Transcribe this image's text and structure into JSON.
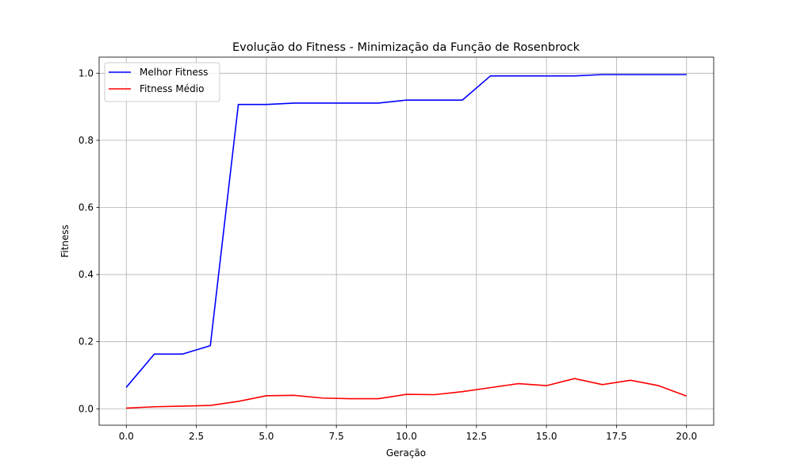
{
  "chart_data": {
    "type": "line",
    "title": "Evolução do Fitness - Minimização da Função de Rosenbrock",
    "xlabel": "Geração",
    "ylabel": "Fitness",
    "x": [
      0,
      1,
      2,
      3,
      4,
      5,
      6,
      7,
      8,
      9,
      10,
      11,
      12,
      13,
      14,
      15,
      16,
      17,
      18,
      19,
      20
    ],
    "xlim": [
      -0.97,
      20.97
    ],
    "ylim": [
      -0.049,
      1.048
    ],
    "xticks": [
      0.0,
      2.5,
      5.0,
      7.5,
      10.0,
      12.5,
      15.0,
      17.5,
      20.0
    ],
    "xtick_labels": [
      "0.0",
      "2.5",
      "5.0",
      "7.5",
      "10.0",
      "12.5",
      "15.0",
      "17.5",
      "20.0"
    ],
    "yticks": [
      0.0,
      0.2,
      0.4,
      0.6,
      0.8,
      1.0
    ],
    "ytick_labels": [
      "0.0",
      "0.2",
      "0.4",
      "0.6",
      "0.8",
      "1.0"
    ],
    "grid": true,
    "legend_position": "top-left",
    "series": [
      {
        "name": "Melhor Fitness",
        "color": "#0000ff",
        "values": [
          0.064,
          0.163,
          0.163,
          0.188,
          0.907,
          0.907,
          0.911,
          0.911,
          0.911,
          0.911,
          0.92,
          0.92,
          0.92,
          0.992,
          0.992,
          0.992,
          0.992,
          0.996,
          0.996,
          0.996,
          0.996
        ]
      },
      {
        "name": "Fitness Médio",
        "color": "#ff0000",
        "values": [
          0.002,
          0.006,
          0.008,
          0.01,
          0.022,
          0.039,
          0.04,
          0.032,
          0.03,
          0.03,
          0.043,
          0.042,
          0.051,
          0.063,
          0.075,
          0.069,
          0.09,
          0.072,
          0.085,
          0.069,
          0.038
        ]
      }
    ]
  }
}
